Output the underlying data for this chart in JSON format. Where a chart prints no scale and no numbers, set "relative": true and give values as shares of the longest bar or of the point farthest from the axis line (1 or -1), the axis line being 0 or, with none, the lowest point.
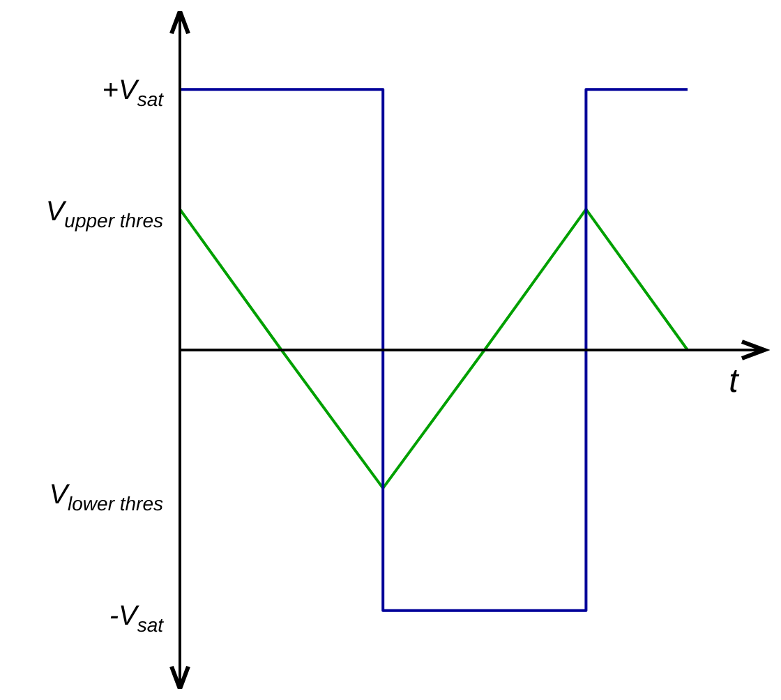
{
  "chart_data": {
    "type": "line",
    "xlabel": "t",
    "relative": true,
    "categories": [
      null,
      null,
      null,
      null,
      null,
      null
    ],
    "annotations": [
      "+V$_{sat}$",
      "V$_{upper thres}$",
      "V$_{lower thres}$",
      "-V$_{sat}$"
    ],
    "series": [
      {
        "type": "step",
        "color": "#000099",
        "values": [
          1,
          1,
          -1,
          -1,
          1,
          1
        ]
      },
      {
        "type": "line",
        "color": "#00a000",
        "values": [
          0.54,
          0,
          -0.53,
          0,
          0.54,
          0
        ]
      }
    ]
  }
}
